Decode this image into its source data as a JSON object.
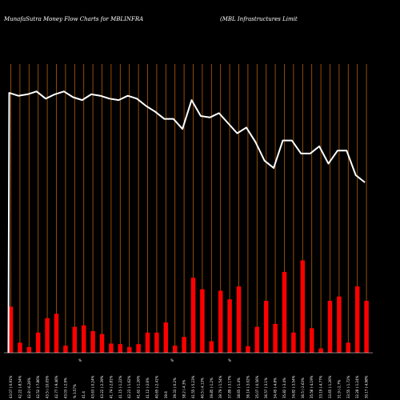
{
  "header": {
    "left": "MunafaSutra  Money Flow  Charts for MBLINFRA",
    "right": "(MBL  Infrastructures Limit"
  },
  "chart_data": {
    "type": "bar",
    "title": "MunafaSutra  Money Flow  Charts for MBLINFRA",
    "subtitle": "(MBL  Infrastructures Limit",
    "xlabel": "",
    "ylabel": "",
    "grid": "vertical",
    "colors": {
      "up": "#00ff00",
      "down": "#ff0000",
      "price": "#ffffff",
      "grid": "#b45f06",
      "background": "#000000"
    },
    "categories": [
      "43.07 (-0.91%",
      "42.22 (-8.54%",
      "42.8 (-6.26%",
      "42.52 (-7.86%",
      "43.5 (-10.05%",
      "42.77 (-9.46%",
      "43.03 (-2.9%",
      "% 3.57%",
      "41.4",
      "43.63 (-0.24%",
      "43.22 (-2.39%",
      "41.74 (-2.81%",
      "41.15 (-1.22%",
      "42.23 (-1.62%",
      "41.62 (-1.26%",
      "41.12 (-2.6%",
      "40.65 (-2.41%",
      "39.6",
      "39.33 (-0.2%",
      "38.2 (-4.3%",
      "41.55 (-5.23%",
      "40.5 (-4.13%",
      "39.85 (-1.2%",
      "39.79 (-1.54%",
      "37.89 (-3.17%",
      "38.65 (-1.4%",
      "36.14 (-3.02%",
      "35.07 (-0.56%",
      "36.57 (-3.1%",
      "34.45 (-4.8%",
      "35.82 (-3.4%",
      "34.82 (-3.54%",
      "36.5 (-2.63%",
      "35.58 (-4.19%",
      "33.19 (-4.77%",
      "33.65 (-1.26%",
      "31.9 (-2.7%",
      "33.55 (-1.72%",
      "32.28 (-1.24%",
      "30.17 (-4.98%"
    ],
    "center_markers": [
      "%",
      "%",
      "%"
    ],
    "series": [
      {
        "type": "bar",
        "values": [
          16,
          3.5,
          2,
          7,
          12,
          13.5,
          2.5,
          9,
          9.5,
          7.5,
          6.5,
          3.2,
          3,
          2,
          3,
          7,
          7,
          10.5,
          2.5,
          5.5,
          26,
          22,
          4,
          21.5,
          18.5,
          23,
          2.3,
          9,
          18,
          10,
          28,
          7,
          32,
          8.5,
          1.5,
          18,
          19.5,
          3.5,
          23,
          18
        ],
        "colors": [
          "red",
          "red",
          "green",
          "green",
          "red",
          "green",
          "green",
          "red",
          "red",
          "green",
          "green",
          "red",
          "red",
          "red",
          "green",
          "red",
          "red",
          "red",
          "red",
          "red",
          "green",
          "red",
          "red",
          "green",
          "red",
          "red",
          "green",
          "red",
          "red",
          "red",
          "green",
          "green",
          "red",
          "red",
          "green",
          "red",
          "green",
          "red",
          "red",
          "red"
        ]
      },
      {
        "type": "line",
        "values": [
          90,
          89,
          89.5,
          90.5,
          88,
          89.5,
          90.5,
          88.5,
          87.5,
          89.5,
          89,
          88,
          87.5,
          89,
          88,
          85.5,
          83.5,
          81,
          81,
          77.5,
          87.5,
          82,
          81.5,
          83,
          79.5,
          76,
          78,
          73,
          66.5,
          64,
          73.5,
          73.5,
          69,
          69,
          71.5,
          65.5,
          70,
          70,
          61.5,
          59
        ]
      }
    ],
    "ylim": [
      0,
      100
    ]
  }
}
